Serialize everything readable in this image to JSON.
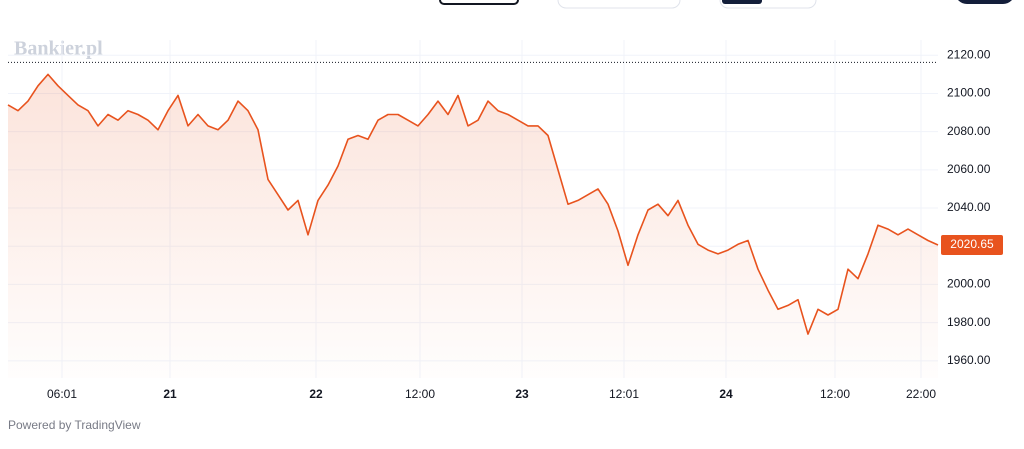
{
  "chart_data": {
    "type": "line",
    "watermark": "Bankier.pl",
    "footer": "Powered by TradingView",
    "color": "#e8531e",
    "values": [
      2094,
      2091,
      2096,
      2104,
      2110,
      2104,
      2099,
      2094,
      2091,
      2083,
      2089,
      2086,
      2091,
      2089,
      2086,
      2081,
      2091,
      2099,
      2083,
      2089,
      2083,
      2081,
      2086,
      2096,
      2091,
      2081,
      2055,
      2047,
      2039,
      2044,
      2026,
      2044,
      2052,
      2062,
      2076,
      2078,
      2076,
      2086,
      2089,
      2089,
      2086,
      2083,
      2089,
      2096,
      2089,
      2099,
      2083,
      2086,
      2096,
      2091,
      2089,
      2086,
      2083,
      2083,
      2078,
      2060,
      2042,
      2044,
      2047,
      2050,
      2042,
      2028,
      2010,
      2026,
      2039,
      2042,
      2036,
      2044,
      2031,
      2021,
      2018,
      2016,
      2018,
      2021,
      2023,
      2008,
      1997,
      1987,
      1989,
      1992,
      1974,
      1987,
      1984,
      1987,
      2008,
      2003,
      2016,
      2031,
      2029,
      2026,
      2029,
      2026,
      2023,
      2020.65
    ],
    "last_price": {
      "value": 2020.65,
      "label": "2020.65"
    },
    "high_line": 2116.3,
    "xlim": [
      0,
      93
    ],
    "xticks": [
      {
        "value": 5.4,
        "label": "06:01"
      },
      {
        "value": 16.2,
        "label": "21"
      },
      {
        "value": 30.8,
        "label": "22"
      },
      {
        "value": 41.2,
        "label": "12:00"
      },
      {
        "value": 51.4,
        "label": "23"
      },
      {
        "value": 61.6,
        "label": "12:01"
      },
      {
        "value": 71.8,
        "label": "24"
      },
      {
        "value": 82.7,
        "label": "12:00"
      },
      {
        "value": 91.3,
        "label": "22:00"
      }
    ],
    "ylim": [
      1951,
      2128
    ],
    "yticks": [
      {
        "value": 1960,
        "label": "1960.00"
      },
      {
        "value": 1980,
        "label": "1980.00"
      },
      {
        "value": 2000,
        "label": "2000.00"
      },
      {
        "value": 2020,
        "label": "2020.00"
      },
      {
        "value": 2040,
        "label": "2040.00"
      },
      {
        "value": 2060,
        "label": "2060.00"
      },
      {
        "value": 2080,
        "label": "2080.00"
      },
      {
        "value": 2100,
        "label": "2100.00"
      },
      {
        "value": 2120,
        "label": "2120.00"
      }
    ],
    "grid": true
  }
}
